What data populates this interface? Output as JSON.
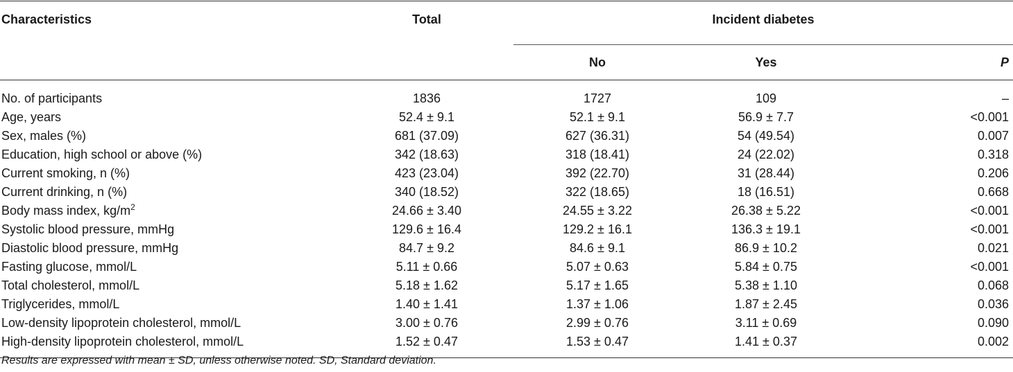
{
  "header": {
    "characteristics": "Characteristics",
    "total": "Total",
    "group": "Incident diabetes",
    "no": "No",
    "yes": "Yes",
    "p": "P"
  },
  "rows": [
    {
      "label": "No. of participants",
      "sup": "",
      "total": "1836",
      "no": "1727",
      "yes": "109",
      "p": "–"
    },
    {
      "label": "Age, years",
      "sup": "",
      "total": "52.4 ± 9.1",
      "no": "52.1 ± 9.1",
      "yes": "56.9 ± 7.7",
      "p": "<0.001"
    },
    {
      "label": "Sex, males (%)",
      "sup": "",
      "total": "681 (37.09)",
      "no": "627 (36.31)",
      "yes": "54 (49.54)",
      "p": "0.007"
    },
    {
      "label": "Education, high school or above (%)",
      "sup": "",
      "total": "342 (18.63)",
      "no": "318 (18.41)",
      "yes": "24 (22.02)",
      "p": "0.318"
    },
    {
      "label": "Current smoking, n (%)",
      "sup": "",
      "total": "423 (23.04)",
      "no": "392 (22.70)",
      "yes": "31 (28.44)",
      "p": "0.206"
    },
    {
      "label": "Current drinking, n (%)",
      "sup": "",
      "total": "340 (18.52)",
      "no": "322 (18.65)",
      "yes": "18 (16.51)",
      "p": "0.668"
    },
    {
      "label": "Body mass index, kg/m",
      "sup": "2",
      "total": "24.66 ± 3.40",
      "no": "24.55 ± 3.22",
      "yes": "26.38 ± 5.22",
      "p": "<0.001"
    },
    {
      "label": "Systolic blood pressure, mmHg",
      "sup": "",
      "total": "129.6 ± 16.4",
      "no": "129.2 ± 16.1",
      "yes": "136.3 ± 19.1",
      "p": "<0.001"
    },
    {
      "label": "Diastolic blood pressure, mmHg",
      "sup": "",
      "total": "84.7 ± 9.2",
      "no": "84.6 ± 9.1",
      "yes": "86.9 ± 10.2",
      "p": "0.021"
    },
    {
      "label": "Fasting glucose, mmol/L",
      "sup": "",
      "total": "5.11 ± 0.66",
      "no": "5.07 ± 0.63",
      "yes": "5.84 ± 0.75",
      "p": "<0.001"
    },
    {
      "label": "Total cholesterol, mmol/L",
      "sup": "",
      "total": "5.18 ± 1.62",
      "no": "5.17 ± 1.65",
      "yes": "5.38 ± 1.10",
      "p": "0.068"
    },
    {
      "label": "Triglycerides, mmol/L",
      "sup": "",
      "total": "1.40 ± 1.41",
      "no": "1.37 ± 1.06",
      "yes": "1.87 ± 2.45",
      "p": "0.036"
    },
    {
      "label": "Low-density lipoprotein cholesterol, mmol/L",
      "sup": "",
      "total": "3.00 ± 0.76",
      "no": "2.99 ± 0.76",
      "yes": "3.11 ± 0.69",
      "p": "0.090"
    },
    {
      "label": "High-density lipoprotein cholesterol, mmol/L",
      "sup": "",
      "total": "1.52 ± 0.47",
      "no": "1.53 ± 0.47",
      "yes": "1.41 ± 0.37",
      "p": "0.002"
    }
  ],
  "footnote": "Results are expressed with mean ± SD, unless otherwise noted. SD, Standard deviation."
}
